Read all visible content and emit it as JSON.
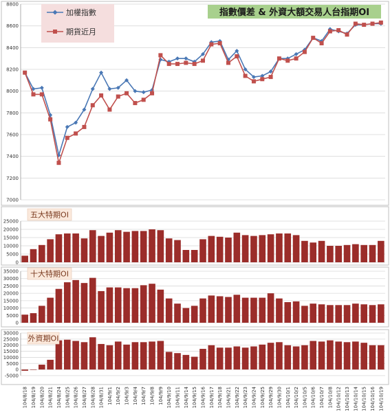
{
  "colors": {
    "index_line": "#4a78b5",
    "futures_line": "#c0504d",
    "bar": "#9b2d2a",
    "title_bg": "#a8d08d",
    "legend_bg": "#f5dede",
    "panel_label_bg": "#fbe9dc"
  },
  "dates": [
    "104/8/18",
    "104/8/19",
    "104/8/20",
    "104/8/21",
    "104/8/24",
    "104/8/25",
    "104/8/26",
    "104/8/27",
    "104/8/28",
    "104/8/31",
    "104/9/1",
    "104/9/2",
    "104/9/3",
    "104/9/4",
    "104/9/7",
    "104/9/8",
    "104/9/9",
    "104/9/10",
    "104/9/11",
    "104/9/14",
    "104/9/15",
    "104/9/16",
    "104/9/17",
    "104/9/18",
    "104/9/21",
    "104/9/22",
    "104/9/23",
    "104/9/24",
    "104/9/25",
    "104/9/29",
    "104/9/30",
    "104/10/1",
    "104/10/2",
    "104/10/5",
    "104/10/6",
    "104/10/7",
    "104/10/8",
    "104/10/12",
    "104/10/13",
    "104/10/14",
    "104/10/15",
    "104/10/16",
    "104/10/19"
  ],
  "chart_data": [
    {
      "type": "line",
      "title": "指數價差 & 外資大額交易人台指期OI",
      "xlabel": "",
      "ylabel": "",
      "ylim": [
        7000,
        8800
      ],
      "yticks": [
        7000,
        7200,
        7400,
        7600,
        7800,
        8000,
        8200,
        8400,
        8600,
        8800
      ],
      "grid": true,
      "legend_position": "top-left",
      "series": [
        {
          "name": "加權指數",
          "values": [
            8170,
            8020,
            8030,
            7780,
            7410,
            7670,
            7710,
            7830,
            8020,
            8170,
            8020,
            8030,
            8100,
            8000,
            7990,
            8010,
            8290,
            8270,
            8300,
            8300,
            8270,
            8340,
            8450,
            8460,
            8290,
            8370,
            8200,
            8130,
            8140,
            8180,
            8300,
            8300,
            8340,
            8380,
            8490,
            8460,
            8570,
            8550,
            8530,
            8610,
            8610,
            8620,
            8620
          ]
        },
        {
          "name": "期貨近月",
          "values": [
            8170,
            7970,
            7970,
            7740,
            7340,
            7570,
            7610,
            7670,
            7870,
            7960,
            7830,
            7950,
            7980,
            7890,
            7920,
            7980,
            8330,
            8250,
            8250,
            8260,
            8250,
            8280,
            8430,
            8440,
            8260,
            8320,
            8140,
            8090,
            8110,
            8130,
            8300,
            8280,
            8300,
            8360,
            8490,
            8440,
            8550,
            8560,
            8520,
            8620,
            8610,
            8620,
            8630
          ]
        }
      ]
    },
    {
      "type": "bar",
      "title": "五大特期OI",
      "ylim": [
        0,
        25000
      ],
      "yticks": [
        0,
        5000,
        10000,
        15000,
        20000,
        25000
      ],
      "values": [
        4000,
        8000,
        10500,
        14000,
        17000,
        17500,
        17500,
        14500,
        19500,
        16000,
        18000,
        19500,
        18500,
        19000,
        19000,
        20000,
        19500,
        14500,
        13500,
        7500,
        7500,
        14000,
        16000,
        15500,
        15000,
        18000,
        16500,
        16000,
        16500,
        17000,
        17500,
        17500,
        16500,
        13000,
        12000,
        13000,
        10000,
        10000,
        10500,
        11000,
        10500,
        10500,
        13000
      ]
    },
    {
      "type": "bar",
      "title": "十大特期OI",
      "ylim": [
        0,
        35000
      ],
      "yticks": [
        0,
        5000,
        10000,
        15000,
        20000,
        25000,
        30000,
        35000
      ],
      "values": [
        5500,
        6500,
        11500,
        17000,
        23000,
        27500,
        29000,
        27000,
        30500,
        21500,
        24000,
        24000,
        23500,
        23500,
        25500,
        26500,
        22500,
        16500,
        13000,
        10000,
        11500,
        16500,
        18500,
        18000,
        17500,
        19000,
        17000,
        17000,
        17000,
        20000,
        16500,
        14000,
        14500,
        11500,
        13000,
        12500,
        12000,
        12000,
        12000,
        13000,
        12500,
        12000,
        12500
      ]
    },
    {
      "type": "bar",
      "title": "外資期OI",
      "ylim": [
        -5000,
        30000
      ],
      "yticks": [
        -5000,
        0,
        5000,
        10000,
        15000,
        20000,
        25000,
        30000
      ],
      "values": [
        -1000,
        0,
        4000,
        8000,
        24000,
        24500,
        23500,
        22500,
        26500,
        21000,
        20000,
        23000,
        20500,
        22500,
        22500,
        23000,
        23500,
        14500,
        13500,
        12000,
        10500,
        17000,
        20000,
        18000,
        18000,
        19000,
        18000,
        19000,
        20500,
        22000,
        22500,
        20000,
        19000,
        20000,
        23500,
        23000,
        24000,
        23000,
        22500,
        23000,
        22000,
        20000,
        20000
      ]
    }
  ]
}
